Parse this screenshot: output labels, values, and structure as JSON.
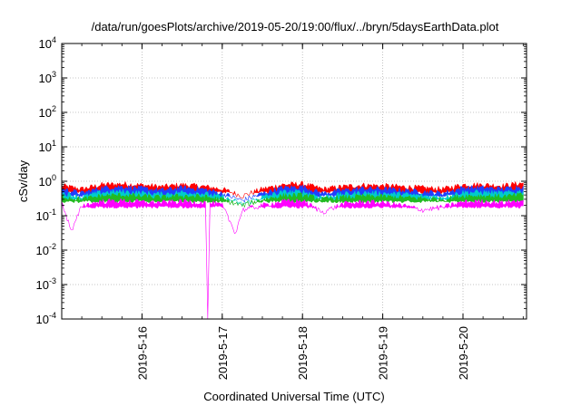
{
  "chart_data": {
    "type": "line",
    "title": "/data/run/goesPlots/archive/2019-05-20/19:00/flux/../bryn/5daysEarthData.plot",
    "xlabel": "Coordinated Universal Time (UTC)",
    "ylabel": "cSv/day",
    "x_axis": "time (days, UTC)",
    "xlim": [
      "2019-05-15T00:00",
      "2019-05-20T19:00"
    ],
    "ylim": [
      0.0001,
      10000
    ],
    "yscale": "log",
    "grid": true,
    "legend": "none",
    "x_ticks": [
      {
        "x": "2019-05-16T00:00",
        "label": "2019-5-16"
      },
      {
        "x": "2019-05-17T00:00",
        "label": "2019-5-17"
      },
      {
        "x": "2019-05-18T00:00",
        "label": "2019-5-18"
      },
      {
        "x": "2019-05-19T00:00",
        "label": "2019-5-19"
      },
      {
        "x": "2019-05-20T00:00",
        "label": "2019-5-20"
      }
    ],
    "y_ticks": [
      {
        "y": 0.0001,
        "base": "10",
        "exp": "-4"
      },
      {
        "y": 0.001,
        "base": "10",
        "exp": "-3"
      },
      {
        "y": 0.01,
        "base": "10",
        "exp": "-2"
      },
      {
        "y": 0.1,
        "base": "10",
        "exp": "-1"
      },
      {
        "y": 1,
        "base": "10",
        "exp": "0"
      },
      {
        "y": 10,
        "base": "10",
        "exp": "1"
      },
      {
        "y": 100,
        "base": "10",
        "exp": "2"
      },
      {
        "y": 1000,
        "base": "10",
        "exp": "3"
      },
      {
        "y": 10000,
        "base": "10",
        "exp": "4"
      }
    ],
    "series": [
      {
        "color": "#ff0000",
        "baseline": 0.48,
        "x": [
          "2019-05-15T00:00",
          "2019-05-15T06:00",
          "2019-05-15T12:00",
          "2019-05-15T18:00",
          "2019-05-16T00:00",
          "2019-05-16T06:00",
          "2019-05-16T12:00",
          "2019-05-16T18:00",
          "2019-05-17T00:00",
          "2019-05-17T06:00",
          "2019-05-17T12:00",
          "2019-05-17T18:00",
          "2019-05-18T00:00",
          "2019-05-18T06:00",
          "2019-05-18T12:00",
          "2019-05-18T18:00",
          "2019-05-19T00:00",
          "2019-05-19T06:00",
          "2019-05-19T12:00",
          "2019-05-19T18:00",
          "2019-05-20T00:00",
          "2019-05-20T06:00",
          "2019-05-20T12:00",
          "2019-05-20T18:00"
        ],
        "y": [
          0.75,
          0.6,
          0.8,
          0.85,
          0.78,
          0.7,
          0.8,
          0.72,
          0.6,
          0.38,
          0.6,
          0.8,
          0.85,
          0.6,
          0.7,
          0.78,
          0.75,
          0.7,
          0.65,
          0.6,
          0.8,
          0.8,
          0.75,
          0.9
        ]
      },
      {
        "color": "#1f3fff",
        "baseline": 0.38,
        "x": [
          "2019-05-15T00:00",
          "2019-05-15T06:00",
          "2019-05-15T12:00",
          "2019-05-15T18:00",
          "2019-05-16T00:00",
          "2019-05-16T06:00",
          "2019-05-16T12:00",
          "2019-05-16T18:00",
          "2019-05-17T00:00",
          "2019-05-17T06:00",
          "2019-05-17T12:00",
          "2019-05-17T18:00",
          "2019-05-18T00:00",
          "2019-05-18T06:00",
          "2019-05-18T12:00",
          "2019-05-18T18:00",
          "2019-05-19T00:00",
          "2019-05-19T06:00",
          "2019-05-19T12:00",
          "2019-05-19T18:00",
          "2019-05-20T00:00",
          "2019-05-20T06:00",
          "2019-05-20T12:00",
          "2019-05-20T18:00"
        ],
        "y": [
          0.6,
          0.45,
          0.65,
          0.7,
          0.62,
          0.55,
          0.65,
          0.6,
          0.45,
          0.28,
          0.45,
          0.65,
          0.7,
          0.45,
          0.55,
          0.62,
          0.6,
          0.55,
          0.5,
          0.45,
          0.65,
          0.65,
          0.6,
          0.72
        ]
      },
      {
        "color": "#00cccc",
        "baseline": 0.3,
        "x": [
          "2019-05-15T00:00",
          "2019-05-15T06:00",
          "2019-05-15T12:00",
          "2019-05-15T18:00",
          "2019-05-16T00:00",
          "2019-05-16T06:00",
          "2019-05-16T12:00",
          "2019-05-16T18:00",
          "2019-05-17T00:00",
          "2019-05-17T06:00",
          "2019-05-17T12:00",
          "2019-05-17T18:00",
          "2019-05-18T00:00",
          "2019-05-18T06:00",
          "2019-05-18T12:00",
          "2019-05-18T18:00",
          "2019-05-19T00:00",
          "2019-05-19T06:00",
          "2019-05-19T12:00",
          "2019-05-19T18:00",
          "2019-05-20T00:00",
          "2019-05-20T06:00",
          "2019-05-20T12:00",
          "2019-05-20T18:00"
        ],
        "y": [
          0.45,
          0.35,
          0.48,
          0.5,
          0.46,
          0.42,
          0.48,
          0.45,
          0.35,
          0.22,
          0.35,
          0.48,
          0.5,
          0.35,
          0.42,
          0.46,
          0.45,
          0.42,
          0.38,
          0.35,
          0.48,
          0.48,
          0.45,
          0.52
        ]
      },
      {
        "color": "#22bb22",
        "baseline": 0.26,
        "x": [
          "2019-05-15T00:00",
          "2019-05-15T06:00",
          "2019-05-15T12:00",
          "2019-05-15T18:00",
          "2019-05-16T00:00",
          "2019-05-16T06:00",
          "2019-05-16T12:00",
          "2019-05-16T18:00",
          "2019-05-17T00:00",
          "2019-05-17T06:00",
          "2019-05-17T12:00",
          "2019-05-17T18:00",
          "2019-05-18T00:00",
          "2019-05-18T06:00",
          "2019-05-18T12:00",
          "2019-05-18T18:00",
          "2019-05-19T00:00",
          "2019-05-19T06:00",
          "2019-05-19T12:00",
          "2019-05-19T18:00",
          "2019-05-20T00:00",
          "2019-05-20T06:00",
          "2019-05-20T12:00",
          "2019-05-20T18:00"
        ],
        "y": [
          0.36,
          0.3,
          0.38,
          0.4,
          0.37,
          0.34,
          0.38,
          0.36,
          0.3,
          0.2,
          0.3,
          0.38,
          0.4,
          0.3,
          0.34,
          0.37,
          0.36,
          0.34,
          0.32,
          0.3,
          0.38,
          0.38,
          0.36,
          0.41
        ]
      },
      {
        "color": "#ff00ff",
        "baseline": 0.18,
        "x": [
          "2019-05-15T00:00",
          "2019-05-15T03:00",
          "2019-05-15T06:00",
          "2019-05-15T12:00",
          "2019-05-15T18:00",
          "2019-05-16T00:00",
          "2019-05-16T06:00",
          "2019-05-16T12:00",
          "2019-05-16T19:00",
          "2019-05-16T19:40",
          "2019-05-16T20:20",
          "2019-05-17T00:00",
          "2019-05-17T04:00",
          "2019-05-17T06:00",
          "2019-05-17T12:00",
          "2019-05-17T18:00",
          "2019-05-18T00:00",
          "2019-05-18T06:00",
          "2019-05-18T12:00",
          "2019-05-18T18:00",
          "2019-05-19T00:00",
          "2019-05-19T06:00",
          "2019-05-19T12:00",
          "2019-05-19T18:00",
          "2019-05-20T00:00",
          "2019-05-20T06:00",
          "2019-05-20T12:00",
          "2019-05-20T18:00"
        ],
        "y": [
          0.25,
          0.035,
          0.2,
          0.26,
          0.27,
          0.25,
          0.24,
          0.26,
          0.24,
          0.0001,
          0.24,
          0.2,
          0.032,
          0.15,
          0.2,
          0.26,
          0.27,
          0.13,
          0.22,
          0.25,
          0.24,
          0.2,
          0.15,
          0.18,
          0.25,
          0.26,
          0.24,
          0.28
        ]
      }
    ]
  }
}
